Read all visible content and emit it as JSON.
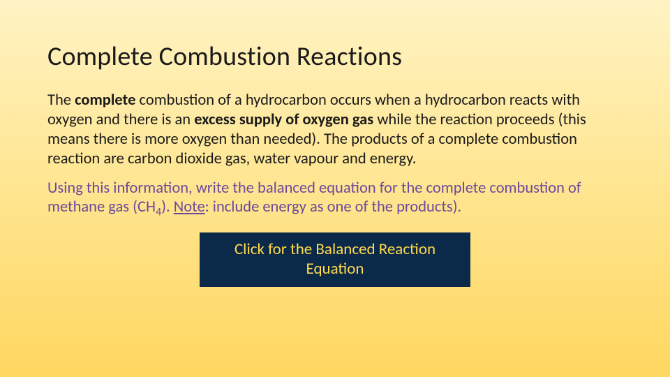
{
  "colors": {
    "bg_gradient_top": "#fff3c4",
    "bg_gradient_mid": "#ffe89a",
    "bg_gradient_bottom": "#ffd760",
    "title_color": "#1a1a1a",
    "body_text_color": "#1a1a1a",
    "note_text_color": "#6b4a9c",
    "button_bg": "#0b2a4a",
    "button_text": "#ffd84d"
  },
  "typography": {
    "title_fontsize": 38,
    "title_weight": 400,
    "body_fontsize": 22.5,
    "button_fontsize": 23,
    "font_family": "Calibri"
  },
  "slide": {
    "title": "Complete Combustion Reactions",
    "para1": {
      "t1": "The ",
      "b1": "complete",
      "t2": " combustion of a hydrocarbon occurs when a hydrocarbon reacts with oxygen and there is an ",
      "b2": "excess supply of oxygen gas",
      "t3": " while the reaction proceeds (this means there is more oxygen than needed).  The products of a complete combustion reaction are carbon dioxide gas, water vapour and energy."
    },
    "para2": {
      "t1": "Using this information, write the balanced equation for the complete combustion of methane gas (CH",
      "sub4": "4",
      "t2": "). ",
      "note_label": "Note",
      "t3": ": include energy as one of the products)."
    },
    "button": {
      "line1": "Click for the Balanced Reaction",
      "line2": "Equation"
    }
  }
}
